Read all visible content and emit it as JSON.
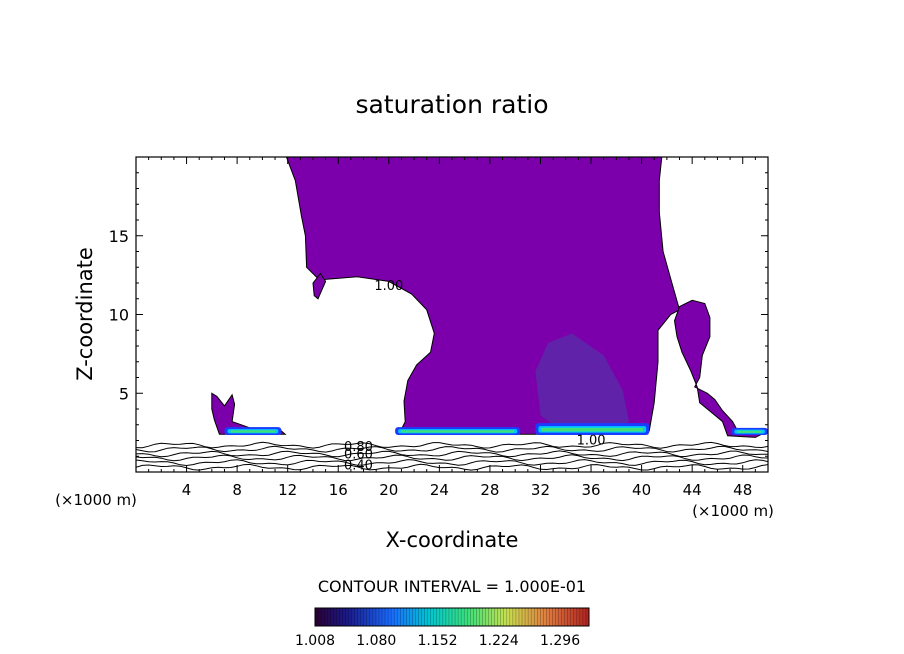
{
  "chart_data": {
    "type": "heatmap",
    "title": "saturation ratio",
    "xlabel": "X-coordinate",
    "ylabel": "Z-coordinate",
    "x_units_left": "(×1000 m)",
    "x_units_right": "(×1000 m)",
    "xlim": [
      0,
      50
    ],
    "ylim": [
      0,
      20
    ],
    "x_ticks": [
      4,
      8,
      12,
      16,
      20,
      24,
      28,
      32,
      36,
      40,
      44,
      48
    ],
    "x_tick_labels": [
      "4",
      "8",
      "12",
      "16",
      "20",
      "24",
      "28",
      "32",
      "36",
      "40",
      "44",
      "48"
    ],
    "y_ticks": [
      5,
      10,
      15
    ],
    "y_tick_labels": [
      "5",
      "10",
      "15"
    ],
    "contour_interval_text": "CONTOUR INTERVAL = 1.000E-01",
    "contour_labels": [
      {
        "text": "1.00",
        "x": 20.0,
        "z": 11.8
      },
      {
        "text": "0.80",
        "x": 17.6,
        "z": 1.6
      },
      {
        "text": "0.60",
        "x": 17.6,
        "z": 1.1
      },
      {
        "text": "0.40",
        "x": 17.6,
        "z": 0.4
      },
      {
        "text": "1.00",
        "x": 36.0,
        "z": 2.0
      }
    ],
    "colorbar": {
      "min": 1.008,
      "max": 1.33,
      "tick_values": [
        1.008,
        1.08,
        1.152,
        1.224,
        1.296
      ],
      "tick_labels": [
        "1.008",
        "1.080",
        "1.152",
        "1.224",
        "1.296"
      ]
    },
    "colors": {
      "saturated_region": "#7b00ab",
      "enhanced_region": "#5a2aa8",
      "band_blue": "#1a3cff",
      "band_cyan": "#00c8ff",
      "band_green": "#3ee07a",
      "contour_line": "#000000"
    },
    "saturated_region": [
      [
        3,
        20
      ],
      [
        11.9,
        20
      ],
      [
        12.6,
        18.5
      ],
      [
        13.1,
        16.2
      ],
      [
        13.4,
        15.0
      ],
      [
        13.5,
        13.0
      ],
      [
        14.5,
        12.2
      ],
      [
        17.5,
        12.4
      ],
      [
        20,
        12.1
      ],
      [
        21.8,
        11.3
      ],
      [
        23,
        10.3
      ],
      [
        23.6,
        8.8
      ],
      [
        23.3,
        7.6
      ],
      [
        22.2,
        6.8
      ],
      [
        21.5,
        5.8
      ],
      [
        21.2,
        4.5
      ],
      [
        21.3,
        3.2
      ],
      [
        20.8,
        2.4
      ],
      [
        38.5,
        2.4
      ],
      [
        40.6,
        2.6
      ],
      [
        41.0,
        4.4
      ],
      [
        41.3,
        7.0
      ],
      [
        41.3,
        9.0
      ],
      [
        42.3,
        10.0
      ],
      [
        43.0,
        10.3
      ],
      [
        42.4,
        12.0
      ],
      [
        41.7,
        14.0
      ],
      [
        41.4,
        16.5
      ],
      [
        41.4,
        18.5
      ],
      [
        41.6,
        20
      ]
    ],
    "enhanced_region": [
      [
        31.6,
        6.4
      ],
      [
        32.6,
        8.2
      ],
      [
        34.5,
        8.8
      ],
      [
        37.0,
        7.4
      ],
      [
        38.5,
        5.2
      ],
      [
        39.0,
        3.2
      ],
      [
        37.5,
        2.4
      ],
      [
        34.0,
        2.4
      ],
      [
        32.0,
        3.6
      ]
    ],
    "left_patch": [
      [
        6.0,
        5.0
      ],
      [
        6.4,
        4.8
      ],
      [
        7.0,
        4.2
      ],
      [
        7.6,
        4.9
      ],
      [
        7.8,
        4.3
      ],
      [
        7.6,
        3.2
      ],
      [
        9.0,
        2.8
      ],
      [
        11.2,
        2.8
      ],
      [
        11.8,
        2.4
      ],
      [
        6.6,
        2.4
      ],
      [
        6.2,
        3.3
      ],
      [
        6.0,
        4.0
      ]
    ],
    "right_patch": [
      [
        43.0,
        10.5
      ],
      [
        44.0,
        10.9
      ],
      [
        45.0,
        10.7
      ],
      [
        45.4,
        9.8
      ],
      [
        45.4,
        8.6
      ],
      [
        44.8,
        7.4
      ],
      [
        44.6,
        6.0
      ],
      [
        44.2,
        5.4
      ],
      [
        45.2,
        5.0
      ],
      [
        45.8,
        4.6
      ],
      [
        46.4,
        3.9
      ],
      [
        47.2,
        3.2
      ],
      [
        47.6,
        2.6
      ],
      [
        50,
        2.6
      ],
      [
        49.0,
        2.2
      ],
      [
        46.8,
        2.3
      ],
      [
        46.4,
        3.2
      ],
      [
        45.5,
        3.8
      ],
      [
        44.6,
        4.4
      ],
      [
        44.4,
        5.4
      ],
      [
        43.9,
        6.4
      ],
      [
        43.2,
        7.6
      ],
      [
        42.8,
        8.6
      ],
      [
        42.6,
        9.6
      ]
    ],
    "small_patch": [
      [
        14.0,
        12.0
      ],
      [
        14.6,
        12.6
      ],
      [
        15.0,
        12.1
      ],
      [
        14.4,
        11.0
      ],
      [
        14.1,
        11.2
      ]
    ],
    "bands": [
      {
        "x": [
          7.0,
          11.5
        ],
        "z": [
          2.35,
          2.85
        ]
      },
      {
        "x": [
          20.5,
          30.4
        ],
        "z": [
          2.35,
          2.85
        ]
      },
      {
        "x": [
          31.6,
          40.6
        ],
        "z": [
          2.35,
          3.1
        ]
      },
      {
        "x": [
          47.1,
          50.0
        ],
        "z": [
          2.35,
          2.8
        ]
      }
    ],
    "low_contour_levels_z": [
      0.3,
      0.6,
      0.9,
      1.15,
      1.45,
      1.7
    ]
  }
}
